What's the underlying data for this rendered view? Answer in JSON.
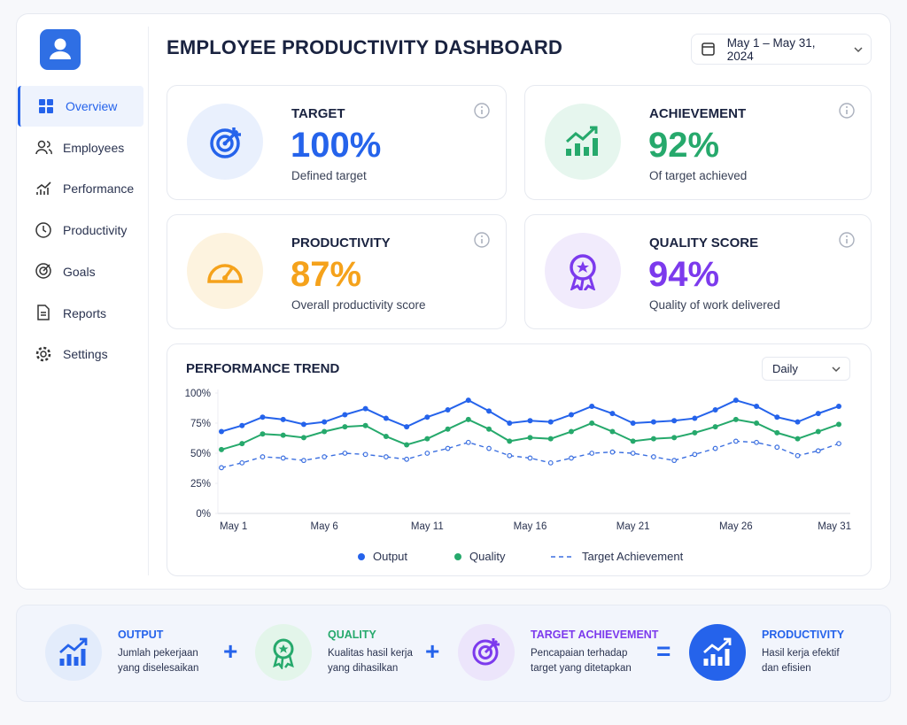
{
  "sidebar": {
    "nav": [
      "Overview",
      "Employees",
      "Performance",
      "Productivity",
      "Goals",
      "Reports",
      "Settings"
    ]
  },
  "header": {
    "title": "EMPLOYEE PRODUCTIVITY DASHBOARD",
    "date_range": "May 1 – May 31, 2024"
  },
  "cards": [
    {
      "label": "TARGET",
      "value": "100%",
      "description": "Defined target"
    },
    {
      "label": "ACHIEVEMENT",
      "value": "92%",
      "description": "Of target achieved"
    },
    {
      "label": "PRODUCTIVITY",
      "value": "87%",
      "description": "Overall productivity score"
    },
    {
      "label": "QUALITY SCORE",
      "value": "94%",
      "description": "Quality of work delivered"
    }
  ],
  "chart_controls": {
    "period": "Daily"
  },
  "chart_data": {
    "type": "line",
    "title": "PERFORMANCE TREND",
    "categories": [
      "May 1",
      null,
      null,
      null,
      null,
      "May 6",
      null,
      null,
      null,
      null,
      "May 11",
      null,
      null,
      null,
      null,
      "May 16",
      null,
      null,
      null,
      null,
      "May 21",
      null,
      null,
      null,
      null,
      "May 26",
      null,
      null,
      null,
      null,
      "May 31"
    ],
    "series": [
      {
        "name": "Output",
        "color": "#2563eb",
        "style": "solid",
        "values": [
          68,
          73,
          80,
          78,
          74,
          76,
          82,
          87,
          79,
          72,
          80,
          86,
          94,
          85,
          75,
          77,
          76,
          82,
          89,
          83,
          75,
          76,
          77,
          79,
          86,
          94,
          89,
          80,
          76,
          83,
          89
        ]
      },
      {
        "name": "Quality",
        "color": "#26a96c",
        "style": "solid",
        "values": [
          53,
          58,
          66,
          65,
          63,
          68,
          72,
          73,
          64,
          57,
          62,
          70,
          78,
          70,
          60,
          63,
          62,
          68,
          75,
          68,
          60,
          62,
          63,
          67,
          72,
          78,
          75,
          67,
          62,
          68,
          74
        ]
      },
      {
        "name": "Target Achievement",
        "color": "#3b6fe0",
        "style": "dashed",
        "values": [
          38,
          42,
          47,
          46,
          44,
          47,
          50,
          49,
          47,
          45,
          50,
          54,
          59,
          54,
          48,
          46,
          42,
          46,
          50,
          51,
          50,
          47,
          44,
          49,
          54,
          60,
          59,
          55,
          48,
          52,
          58
        ]
      }
    ],
    "ylim": [
      0,
      100
    ],
    "yticks": [
      {
        "value": 0,
        "label": "0%"
      },
      {
        "value": 25,
        "label": "25%"
      },
      {
        "value": 50,
        "label": "50%"
      },
      {
        "value": 75,
        "label": "75%"
      },
      {
        "value": 100,
        "label": "100%"
      }
    ],
    "grid": false
  },
  "formula": {
    "items": [
      {
        "title": "OUTPUT",
        "description": [
          "Jumlah pekerjaan",
          "yang diselesaikan"
        ]
      },
      {
        "title": "QUALITY",
        "description": [
          "Kualitas hasil kerja",
          "yang dihasilkan"
        ]
      },
      {
        "title": "TARGET ACHIEVEMENT",
        "description": [
          "Pencapaian terhadap",
          "target yang ditetapkan"
        ]
      },
      {
        "title": "PRODUCTIVITY",
        "description": [
          "Hasil kerja efektif",
          "dan efisien"
        ]
      }
    ],
    "operators": [
      "+",
      "+",
      "="
    ]
  }
}
